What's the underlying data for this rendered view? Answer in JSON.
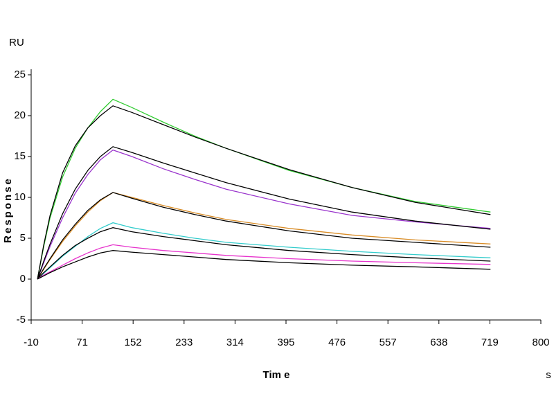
{
  "chart_data": {
    "type": "line",
    "y_unit": "RU",
    "y_label": "Response",
    "x_label": "Tim e",
    "x_unit": "s",
    "x": [
      0,
      10,
      20,
      40,
      60,
      80,
      100,
      120,
      150,
      200,
      250,
      300,
      400,
      500,
      600,
      720
    ],
    "series": [
      {
        "color": "#33cc33",
        "values": [
          0,
          4,
          7.5,
          12.5,
          16,
          18.5,
          20.5,
          22,
          21,
          19.2,
          17.5,
          16,
          13.3,
          11.2,
          9.5,
          8.2
        ]
      },
      {
        "color": "#000000",
        "values": [
          0,
          4.2,
          7.8,
          13,
          16.3,
          18.5,
          20,
          21.2,
          20.4,
          18.9,
          17.4,
          16,
          13.4,
          11.2,
          9.4,
          7.9
        ]
      },
      {
        "color": "#9933cc",
        "values": [
          0,
          2,
          4,
          7.5,
          10.5,
          12.8,
          14.6,
          15.8,
          15,
          13.5,
          12.2,
          11,
          9.2,
          7.8,
          7,
          6.2
        ]
      },
      {
        "color": "#000000",
        "values": [
          0,
          2.2,
          4.3,
          8,
          11,
          13.3,
          15,
          16.2,
          15.5,
          14.2,
          13,
          11.8,
          9.8,
          8.2,
          7.1,
          6.1
        ]
      },
      {
        "color": "#d98c26",
        "values": [
          0,
          1.2,
          2.4,
          4.6,
          6.5,
          8.2,
          9.6,
          10.6,
          10,
          9,
          8.1,
          7.3,
          6.2,
          5.4,
          4.8,
          4.3
        ]
      },
      {
        "color": "#000000",
        "values": [
          0,
          1.3,
          2.5,
          4.8,
          6.7,
          8.4,
          9.7,
          10.6,
          9.9,
          8.8,
          7.9,
          7.1,
          5.9,
          5,
          4.5,
          3.9
        ]
      },
      {
        "color": "#33cccc",
        "values": [
          0,
          0.7,
          1.4,
          2.8,
          4,
          5.2,
          6.2,
          6.9,
          6.3,
          5.6,
          5,
          4.5,
          3.9,
          3.4,
          3,
          2.6
        ]
      },
      {
        "color": "#000000",
        "values": [
          0,
          0.8,
          1.5,
          2.9,
          4.1,
          5,
          5.8,
          6.3,
          5.8,
          5.2,
          4.7,
          4.2,
          3.5,
          3,
          2.6,
          2.2
        ]
      },
      {
        "color": "#e633cc",
        "values": [
          0,
          0.5,
          0.9,
          1.7,
          2.5,
          3.2,
          3.8,
          4.2,
          3.9,
          3.5,
          3.2,
          2.9,
          2.5,
          2.2,
          2,
          1.8
        ]
      },
      {
        "color": "#000000",
        "values": [
          0,
          0.4,
          0.8,
          1.5,
          2.1,
          2.7,
          3.2,
          3.5,
          3.3,
          3,
          2.7,
          2.4,
          2,
          1.7,
          1.5,
          1.2
        ]
      }
    ],
    "xlim": [
      -10,
      800
    ],
    "xticks": [
      -10,
      71,
      152,
      233,
      314,
      395,
      476,
      557,
      638,
      719,
      800
    ],
    "ylim": [
      -5,
      25
    ],
    "yticks": [
      -5,
      0,
      5,
      10,
      15,
      20,
      25
    ]
  }
}
